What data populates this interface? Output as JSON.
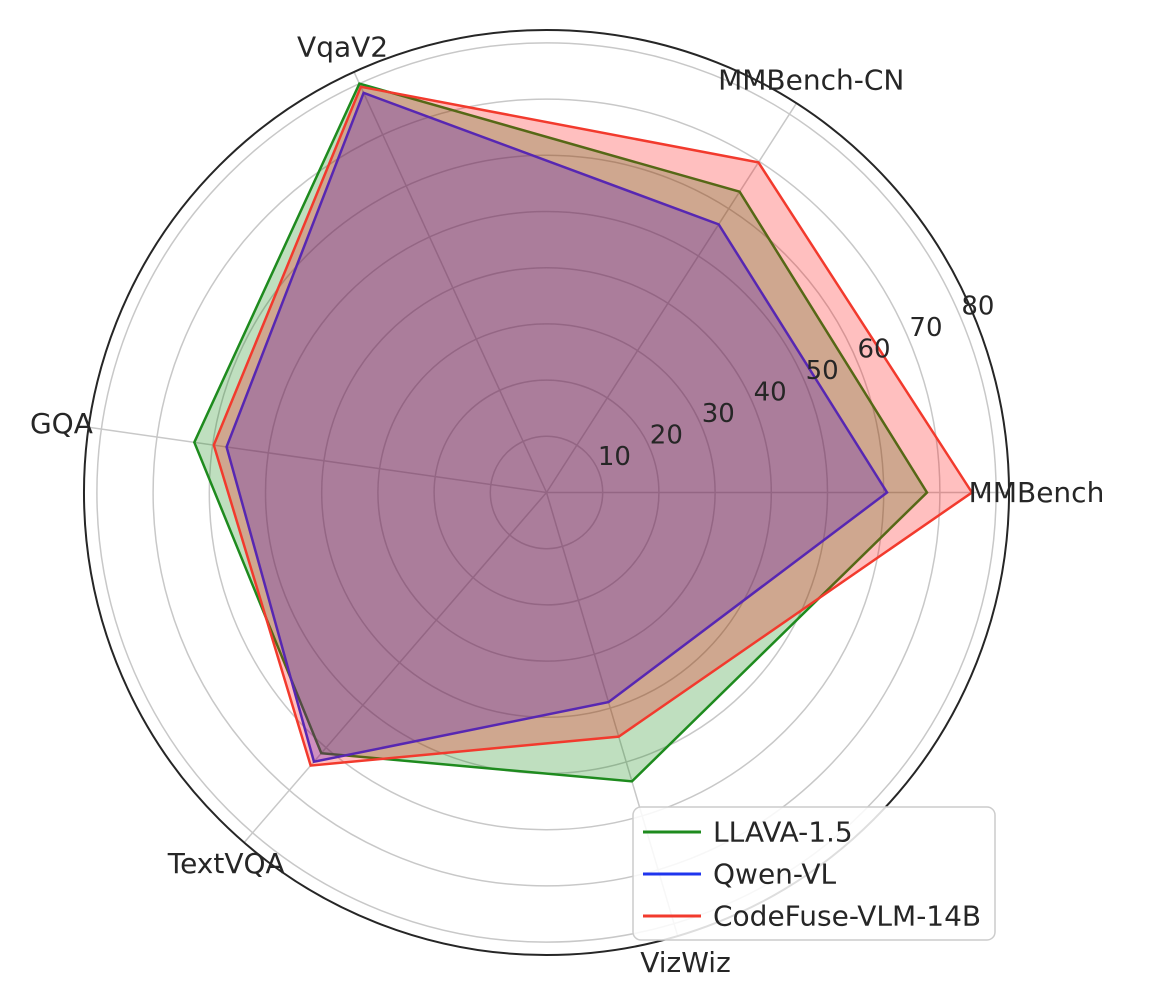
{
  "figure": {
    "background": "#ffffff",
    "grid_color": "#c8c8c8",
    "spine_color": "#262626",
    "text_color": "#262626"
  },
  "chart_data": {
    "type": "radar",
    "title": "",
    "categories": [
      "MMBench",
      "MMBench-CN",
      "VqaV2",
      "GQA",
      "TextVQA",
      "VizWiz"
    ],
    "axis_angles_rad": [
      0,
      1,
      2,
      3,
      4,
      5
    ],
    "r_ticks": [
      10,
      20,
      30,
      40,
      50,
      60,
      70,
      80
    ],
    "r_tick_labels": [
      "10",
      "20",
      "30",
      "40",
      "50",
      "60",
      "70",
      "80"
    ],
    "r_max": 82.3,
    "grid": true,
    "legend_position": "lower right",
    "fill_alpha": 0.25,
    "series": [
      {
        "name": "LLAVA-1.5",
        "color": "#1e8b1e",
        "fill_color": "#008000",
        "values": [
          67.7,
          63.6,
          80.0,
          63.3,
          61.3,
          53.6
        ]
      },
      {
        "name": "Qwen-VL",
        "color": "#1f35ee",
        "fill_color": "#0000ff",
        "values": [
          60.6,
          56.7,
          78.2,
          57.5,
          63.3,
          38.9
        ]
      },
      {
        "name": "CodeFuse-VLM-14B",
        "color": "#f23a2d",
        "fill_color": "#ff0000",
        "values": [
          75.7,
          69.8,
          79.4,
          59.8,
          64.2,
          45.3
        ]
      }
    ]
  }
}
